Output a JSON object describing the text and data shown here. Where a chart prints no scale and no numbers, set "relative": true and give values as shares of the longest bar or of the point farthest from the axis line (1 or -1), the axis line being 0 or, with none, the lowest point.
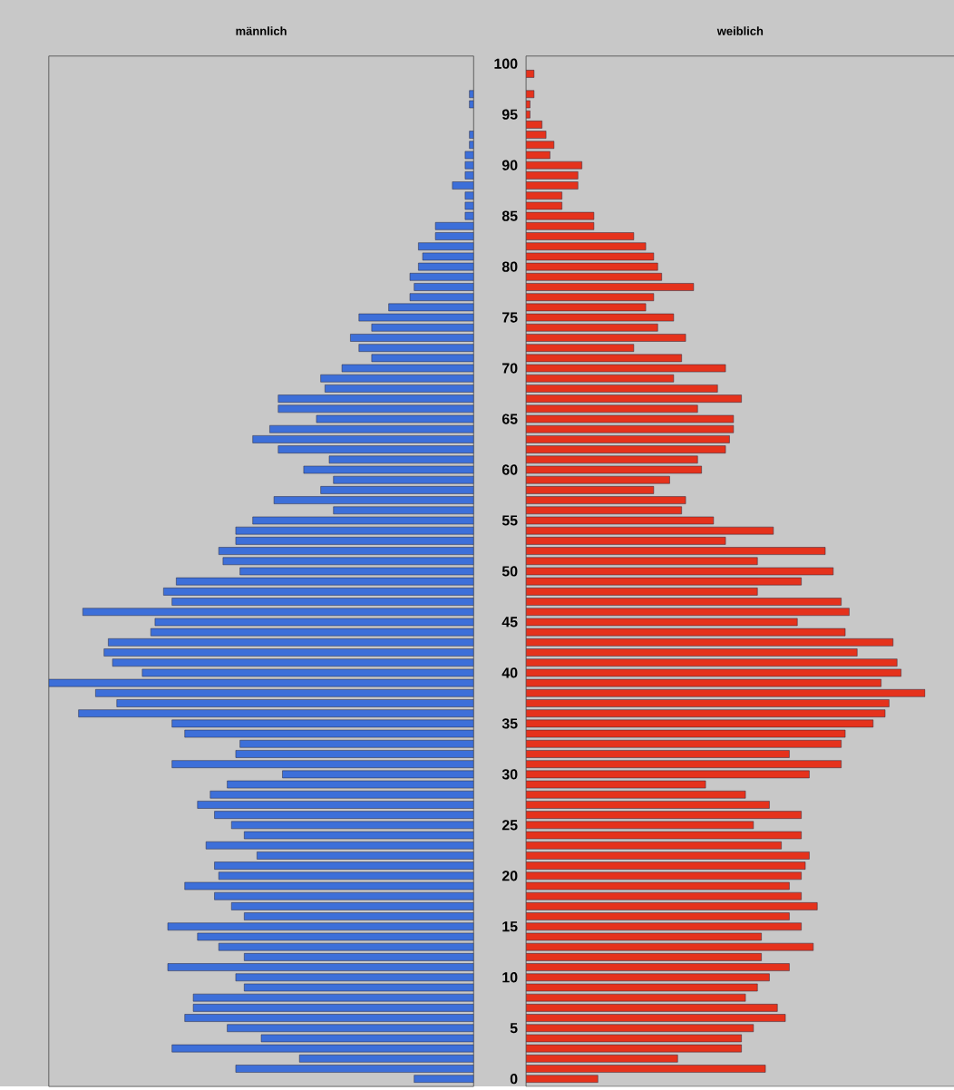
{
  "chart_data": [
    {
      "type": "bar",
      "orientation": "horizontal",
      "relative": true,
      "title": "männlich",
      "color": "#3d6fd9",
      "tick_labels": false,
      "categories": [
        "100",
        null,
        null,
        null,
        null,
        "95",
        null,
        null,
        null,
        null,
        "90",
        null,
        null,
        null,
        null,
        "85",
        null,
        null,
        null,
        null,
        "80",
        null,
        null,
        null,
        null,
        "75",
        null,
        null,
        null,
        null,
        "70",
        null,
        null,
        null,
        null,
        "65",
        null,
        null,
        null,
        null,
        "60",
        null,
        null,
        null,
        null,
        "55",
        null,
        null,
        null,
        null,
        "50",
        null,
        null,
        null,
        null,
        "45",
        null,
        null,
        null,
        null,
        "40",
        null,
        null,
        null,
        null,
        "35",
        null,
        null,
        null,
        null,
        "30",
        null,
        null,
        null,
        null,
        "25",
        null,
        null,
        null,
        null,
        "20",
        null,
        null,
        null,
        null,
        "15",
        null,
        null,
        null,
        null,
        "10",
        null,
        null,
        null,
        null,
        "5",
        null,
        null,
        null,
        null,
        "0"
      ],
      "values": [
        null,
        null,
        null,
        0.01,
        0.01,
        null,
        null,
        0.01,
        0.01,
        0.02,
        0.02,
        0.02,
        0.05,
        0.02,
        0.02,
        0.02,
        0.09,
        0.09,
        0.13,
        0.12,
        0.13,
        0.15,
        0.14,
        0.15,
        0.2,
        0.27,
        0.24,
        0.29,
        0.27,
        0.24,
        0.31,
        0.36,
        0.35,
        0.46,
        0.46,
        0.37,
        0.48,
        0.52,
        0.46,
        0.34,
        0.4,
        0.33,
        0.36,
        0.47,
        0.33,
        0.52,
        0.56,
        0.56,
        0.6,
        0.59,
        0.55,
        0.7,
        0.73,
        0.71,
        0.92,
        0.75,
        0.76,
        0.86,
        0.87,
        0.85,
        0.78,
        1,
        0.89,
        0.84,
        0.93,
        0.71,
        0.68,
        0.55,
        0.56,
        0.71,
        0.45,
        0.58,
        0.62,
        0.65,
        0.61,
        0.57,
        0.54,
        0.63,
        0.51,
        0.61,
        0.6,
        0.68,
        0.61,
        0.57,
        0.54,
        0.72,
        0.65,
        0.6,
        0.54,
        0.72,
        0.56,
        0.54,
        0.66,
        0.66,
        0.68,
        0.58,
        0.5,
        0.71,
        0.41,
        0.56,
        0.14
      ]
    },
    {
      "type": "bar",
      "orientation": "horizontal",
      "relative": true,
      "title": "weiblich",
      "color": "#e5321c",
      "tick_labels": "y",
      "categories": [
        "100",
        null,
        null,
        null,
        null,
        "95",
        null,
        null,
        null,
        null,
        "90",
        null,
        null,
        null,
        null,
        "85",
        null,
        null,
        null,
        null,
        "80",
        null,
        null,
        null,
        null,
        "75",
        null,
        null,
        null,
        null,
        "70",
        null,
        null,
        null,
        null,
        "65",
        null,
        null,
        null,
        null,
        "60",
        null,
        null,
        null,
        null,
        "55",
        null,
        null,
        null,
        null,
        "50",
        null,
        null,
        null,
        null,
        "45",
        null,
        null,
        null,
        null,
        "40",
        null,
        null,
        null,
        null,
        "35",
        null,
        null,
        null,
        null,
        "30",
        null,
        null,
        null,
        null,
        "25",
        null,
        null,
        null,
        null,
        "20",
        null,
        null,
        null,
        null,
        "15",
        null,
        null,
        null,
        null,
        "10",
        null,
        null,
        null,
        null,
        "5",
        null,
        null,
        null,
        null,
        "0"
      ],
      "values": [
        null,
        0.02,
        null,
        0.02,
        0.01,
        0.01,
        0.04,
        0.05,
        0.07,
        0.06,
        0.14,
        0.13,
        0.13,
        0.09,
        0.09,
        0.17,
        0.17,
        0.27,
        0.3,
        0.32,
        0.33,
        0.34,
        0.42,
        0.32,
        0.3,
        0.37,
        0.33,
        0.4,
        0.27,
        0.39,
        0.5,
        0.37,
        0.48,
        0.54,
        0.43,
        0.52,
        0.52,
        0.51,
        0.5,
        0.43,
        0.44,
        0.36,
        0.32,
        0.4,
        0.39,
        0.47,
        0.62,
        0.5,
        0.75,
        0.58,
        0.77,
        0.69,
        0.58,
        0.79,
        0.81,
        0.68,
        0.8,
        0.92,
        0.83,
        0.93,
        0.94,
        0.89,
        1,
        0.91,
        0.9,
        0.87,
        0.8,
        0.79,
        0.66,
        0.79,
        0.71,
        0.45,
        0.55,
        0.61,
        0.69,
        0.57,
        0.69,
        0.64,
        0.71,
        0.7,
        0.69,
        0.66,
        0.69,
        0.73,
        0.66,
        0.69,
        0.59,
        0.72,
        0.59,
        0.66,
        0.61,
        0.58,
        0.55,
        0.63,
        0.65,
        0.57,
        0.54,
        0.54,
        0.38,
        0.6,
        0.18
      ]
    }
  ]
}
